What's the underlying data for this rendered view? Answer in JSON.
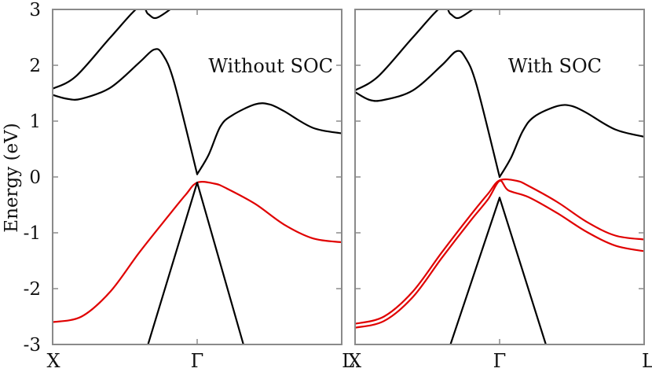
{
  "chart_data": {
    "type": "line",
    "ylabel": "Energy (eV)",
    "ylim": [
      -3,
      3
    ],
    "yticks": [
      "3",
      "2",
      "1",
      "0",
      "-1",
      "-2",
      "-3"
    ],
    "xlim": [
      0,
      1
    ],
    "xtick_labels": [
      "X",
      "Γ",
      "L",
      "X",
      "Γ",
      "L"
    ],
    "grid": false,
    "colors": {
      "conduction": "#000000",
      "valence_highlight": "#e00000",
      "frame": "#8a8a8a"
    },
    "panels": [
      {
        "label": "Without SOC",
        "series": [
          {
            "color": "#000000",
            "x": [
              0,
              0.08,
              0.2,
              0.3,
              0.33,
              0.36,
              0.42
            ],
            "y": [
              1.58,
              1.8,
              2.5,
              3.05,
              2.92,
              2.85,
              3.05
            ]
          },
          {
            "color": "#000000",
            "x": [
              0,
              0.05,
              0.1,
              0.2,
              0.3,
              0.35,
              0.38,
              0.42,
              0.5
            ],
            "y": [
              1.47,
              1.4,
              1.4,
              1.6,
              2.05,
              2.28,
              2.2,
              1.7,
              0.05
            ]
          },
          {
            "color": "#000000",
            "x": [
              0.5,
              0.54,
              0.58,
              0.62,
              0.7,
              0.75,
              0.8,
              0.9,
              1.0
            ],
            "y": [
              0.05,
              0.4,
              0.9,
              1.1,
              1.3,
              1.3,
              1.18,
              0.88,
              0.78
            ]
          },
          {
            "color": "#e00000",
            "x": [
              0,
              0.1,
              0.2,
              0.3,
              0.4,
              0.46,
              0.5,
              0.56,
              0.6,
              0.7,
              0.8,
              0.9,
              1.0
            ],
            "y": [
              -2.6,
              -2.5,
              -2.05,
              -1.35,
              -0.7,
              -0.32,
              -0.1,
              -0.12,
              -0.2,
              -0.48,
              -0.85,
              -1.1,
              -1.17
            ]
          },
          {
            "color": "#000000",
            "x": [
              0.33,
              0.5,
              0.66
            ],
            "y": [
              -3.0,
              -0.1,
              -3.0
            ]
          }
        ]
      },
      {
        "label": "With SOC",
        "series": [
          {
            "color": "#000000",
            "x": [
              0,
              0.08,
              0.2,
              0.3,
              0.33,
              0.36,
              0.42
            ],
            "y": [
              1.55,
              1.8,
              2.5,
              3.05,
              2.92,
              2.85,
              3.05
            ]
          },
          {
            "color": "#000000",
            "x": [
              0,
              0.05,
              0.1,
              0.2,
              0.3,
              0.35,
              0.38,
              0.42,
              0.5
            ],
            "y": [
              1.52,
              1.38,
              1.38,
              1.55,
              2.0,
              2.25,
              2.15,
              1.65,
              0.0
            ]
          },
          {
            "color": "#000000",
            "x": [
              0.5,
              0.54,
              0.58,
              0.62,
              0.7,
              0.75,
              0.8,
              0.9,
              1.0
            ],
            "y": [
              0.0,
              0.35,
              0.82,
              1.08,
              1.27,
              1.27,
              1.15,
              0.85,
              0.72
            ]
          },
          {
            "color": "#e00000",
            "x": [
              0,
              0.1,
              0.2,
              0.3,
              0.4,
              0.46,
              0.5,
              0.56,
              0.6,
              0.7,
              0.8,
              0.9,
              1.0
            ],
            "y": [
              -2.63,
              -2.5,
              -2.05,
              -1.35,
              -0.68,
              -0.3,
              -0.06,
              -0.07,
              -0.16,
              -0.45,
              -0.8,
              -1.05,
              -1.12
            ]
          },
          {
            "color": "#e00000",
            "x": [
              0,
              0.1,
              0.2,
              0.3,
              0.4,
              0.46,
              0.5,
              0.53,
              0.6,
              0.7,
              0.8,
              0.9,
              1.0
            ],
            "y": [
              -2.7,
              -2.58,
              -2.15,
              -1.45,
              -0.78,
              -0.4,
              -0.07,
              -0.24,
              -0.36,
              -0.65,
              -0.98,
              -1.23,
              -1.33
            ]
          },
          {
            "color": "#000000",
            "x": [
              0.33,
              0.5,
              0.66
            ],
            "y": [
              -3.0,
              -0.37,
              -3.0
            ]
          }
        ]
      }
    ]
  }
}
